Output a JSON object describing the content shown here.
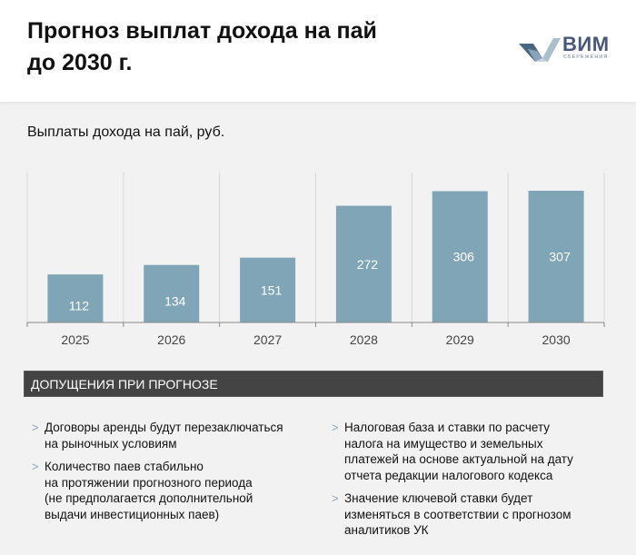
{
  "header": {
    "title_line1": "Прогноз выплат дохода на пай",
    "title_line2": "до 2030 г.",
    "logo_word": "ВИМ",
    "logo_sub": "СБЕРЕЖЕНИЯ"
  },
  "chart_data": {
    "type": "bar",
    "title": "Выплаты дохода на пай, руб.",
    "categories": [
      "2025",
      "2026",
      "2027",
      "2028",
      "2029",
      "2030"
    ],
    "values": [
      112,
      134,
      151,
      272,
      306,
      307
    ],
    "xlabel": "",
    "ylabel": "",
    "ylim": [
      0,
      307
    ],
    "grid": "vertical",
    "bar_color": "#7fa5b6",
    "labels": [
      "112",
      "134",
      "151",
      "272",
      "306",
      "307"
    ]
  },
  "assumptions": {
    "heading": "ДОПУЩЕНИЯ ПРИ ПРОГНОЗЕ",
    "bullet_glyph": ">",
    "left": [
      [
        "Договоры аренды будут перезаключаться",
        "на рыночных условиям"
      ],
      [
        "Количество паев стабильно",
        "на протяжении прогнозного периода",
        "(не предполагается дополнительной",
        "выдачи инвестиционных паев)"
      ]
    ],
    "right": [
      [
        "Налоговая база и ставки по расчету",
        "налога на имущество и земельных",
        "платежей на основе актуальной на дату",
        "отчета редакции налогового кодекса"
      ],
      [
        "Значение ключевой ставки будет",
        "изменяться в соответствии с прогнозом",
        "аналитиков УК"
      ]
    ]
  }
}
